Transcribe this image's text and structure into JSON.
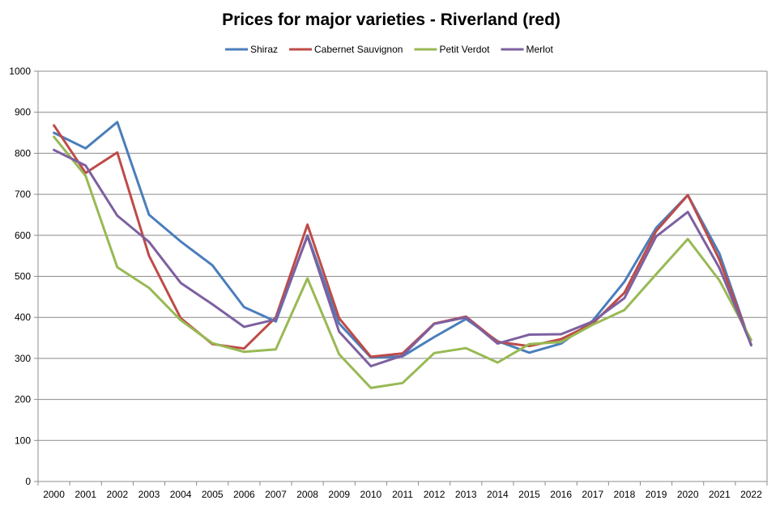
{
  "chart_data": {
    "type": "line",
    "title": "Prices for major varieties - Riverland (red)",
    "xlabel": "",
    "ylabel": "",
    "ylim": [
      0,
      1000
    ],
    "yticks": [
      0,
      100,
      200,
      300,
      400,
      500,
      600,
      700,
      800,
      900,
      1000
    ],
    "grid": true,
    "legend_position": "top",
    "categories": [
      "2000",
      "2001",
      "2002",
      "2003",
      "2004",
      "2005",
      "2006",
      "2007",
      "2008",
      "2009",
      "2010",
      "2011",
      "2012",
      "2013",
      "2014",
      "2015",
      "2016",
      "2017",
      "2018",
      "2019",
      "2020",
      "2021",
      "2022"
    ],
    "series": [
      {
        "name": "Shiraz",
        "color": "#4a7ebb",
        "values": [
          850,
          812,
          876,
          650,
          585,
          527,
          425,
          390,
          600,
          385,
          302,
          305,
          352,
          396,
          342,
          314,
          336,
          392,
          487,
          618,
          698,
          555,
          332
        ]
      },
      {
        "name": "Cabernet Sauvignon",
        "color": "#be4b48",
        "values": [
          868,
          752,
          802,
          550,
          398,
          335,
          324,
          400,
          626,
          398,
          304,
          312,
          385,
          402,
          340,
          330,
          347,
          385,
          460,
          610,
          698,
          540,
          333
        ]
      },
      {
        "name": "Petit Verdot",
        "color": "#98b954",
        "values": [
          840,
          745,
          522,
          472,
          393,
          337,
          316,
          322,
          495,
          310,
          228,
          240,
          313,
          325,
          290,
          335,
          340,
          382,
          418,
          505,
          591,
          490,
          345
        ]
      },
      {
        "name": "Merlot",
        "color": "#7d60a0",
        "values": [
          808,
          770,
          648,
          584,
          484,
          432,
          377,
          395,
          598,
          365,
          281,
          307,
          384,
          400,
          336,
          358,
          359,
          390,
          447,
          597,
          657,
          520,
          333
        ]
      }
    ]
  }
}
